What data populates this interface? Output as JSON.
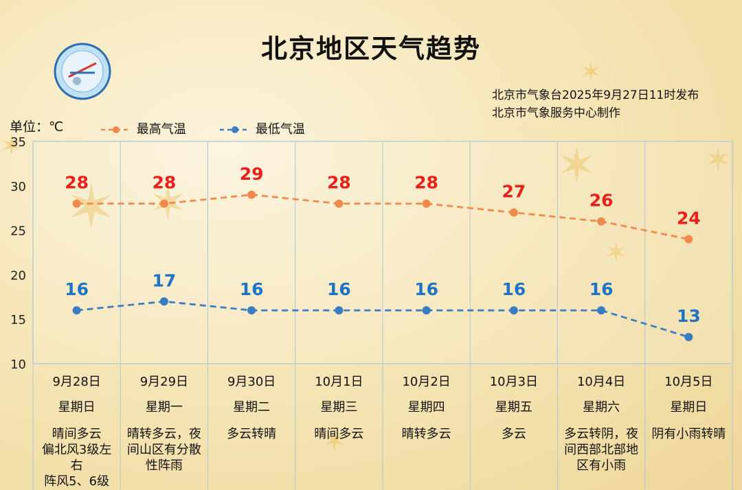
{
  "title": "北京地区天气趋势",
  "publisher_line1": "北京市气象台2025年9月27日11时发布",
  "publisher_line2": "北京市气象服务中心制作",
  "unit_label": "单位：℃",
  "colors": {
    "high": "#f08a4b",
    "low": "#3a7dc4",
    "high_label": "#e8211a",
    "low_label": "#1f73c4",
    "grid": "#a9c9d6"
  },
  "chart_data": {
    "type": "line",
    "ylim": [
      10,
      35
    ],
    "yticks": [
      10,
      15,
      20,
      25,
      30,
      35
    ],
    "grid": true,
    "legend_position": "top-left",
    "series": [
      {
        "name": "最高气温",
        "values": [
          28,
          28,
          29,
          28,
          28,
          27,
          26,
          24
        ]
      },
      {
        "name": "最低气温",
        "values": [
          16,
          17,
          16,
          16,
          16,
          16,
          16,
          13
        ]
      }
    ],
    "days": [
      {
        "date": "9月28日",
        "weekday": "星期日",
        "weather": [
          "晴间多云",
          "偏北风3级左",
          "右",
          "阵风5、6级"
        ]
      },
      {
        "date": "9月29日",
        "weekday": "星期一",
        "weather": [
          "晴转多云，夜",
          "间山区有分散",
          "性阵雨"
        ]
      },
      {
        "date": "9月30日",
        "weekday": "星期二",
        "weather": [
          "多云转晴"
        ]
      },
      {
        "date": "10月1日",
        "weekday": "星期三",
        "weather": [
          "晴间多云"
        ]
      },
      {
        "date": "10月2日",
        "weekday": "星期四",
        "weather": [
          "晴转多云"
        ]
      },
      {
        "date": "10月3日",
        "weekday": "星期五",
        "weather": [
          "多云"
        ]
      },
      {
        "date": "10月4日",
        "weekday": "星期六",
        "weather": [
          "多云转阴，夜",
          "间西部北部地",
          "区有小雨"
        ]
      },
      {
        "date": "10月5日",
        "weekday": "星期日",
        "weather": [
          "阴有小雨转晴"
        ]
      }
    ]
  }
}
